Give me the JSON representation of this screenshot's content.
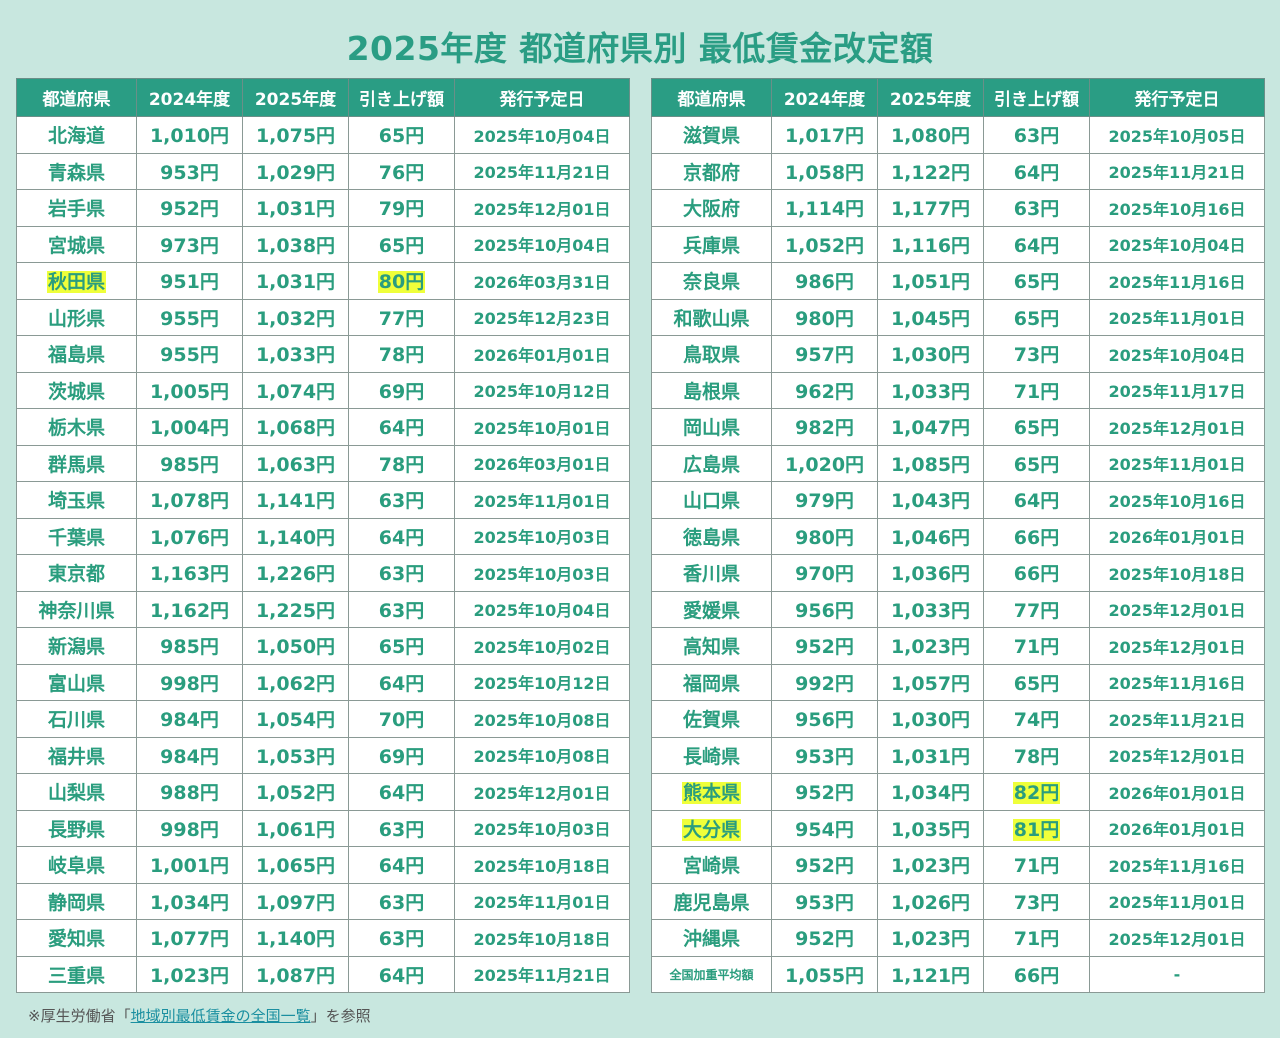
{
  "title": "2025年度 都道府県別 最低賃金改定額",
  "headers": [
    "都道府県",
    "2024年度",
    "2025年度",
    "引き上げ額",
    "発行予定日"
  ],
  "highlight_color": "#efff3a",
  "left": [
    [
      "北海道",
      "1,010円",
      "1,075円",
      "65円",
      "2025年10月04日"
    ],
    [
      "青森県",
      "953円",
      "1,029円",
      "76円",
      "2025年11月21日"
    ],
    [
      "岩手県",
      "952円",
      "1,031円",
      "79円",
      "2025年12月01日"
    ],
    [
      "宮城県",
      "973円",
      "1,038円",
      "65円",
      "2025年10月04日"
    ],
    [
      "秋田県",
      "951円",
      "1,031円",
      "80円",
      "2026年03月31日",
      true
    ],
    [
      "山形県",
      "955円",
      "1,032円",
      "77円",
      "2025年12月23日"
    ],
    [
      "福島県",
      "955円",
      "1,033円",
      "78円",
      "2026年01月01日"
    ],
    [
      "茨城県",
      "1,005円",
      "1,074円",
      "69円",
      "2025年10月12日"
    ],
    [
      "栃木県",
      "1,004円",
      "1,068円",
      "64円",
      "2025年10月01日"
    ],
    [
      "群馬県",
      "985円",
      "1,063円",
      "78円",
      "2026年03月01日"
    ],
    [
      "埼玉県",
      "1,078円",
      "1,141円",
      "63円",
      "2025年11月01日"
    ],
    [
      "千葉県",
      "1,076円",
      "1,140円",
      "64円",
      "2025年10月03日"
    ],
    [
      "東京都",
      "1,163円",
      "1,226円",
      "63円",
      "2025年10月03日"
    ],
    [
      "神奈川県",
      "1,162円",
      "1,225円",
      "63円",
      "2025年10月04日"
    ],
    [
      "新潟県",
      "985円",
      "1,050円",
      "65円",
      "2025年10月02日"
    ],
    [
      "富山県",
      "998円",
      "1,062円",
      "64円",
      "2025年10月12日"
    ],
    [
      "石川県",
      "984円",
      "1,054円",
      "70円",
      "2025年10月08日"
    ],
    [
      "福井県",
      "984円",
      "1,053円",
      "69円",
      "2025年10月08日"
    ],
    [
      "山梨県",
      "988円",
      "1,052円",
      "64円",
      "2025年12月01日"
    ],
    [
      "長野県",
      "998円",
      "1,061円",
      "63円",
      "2025年10月03日"
    ],
    [
      "岐阜県",
      "1,001円",
      "1,065円",
      "64円",
      "2025年10月18日"
    ],
    [
      "静岡県",
      "1,034円",
      "1,097円",
      "63円",
      "2025年11月01日"
    ],
    [
      "愛知県",
      "1,077円",
      "1,140円",
      "63円",
      "2025年10月18日"
    ],
    [
      "三重県",
      "1,023円",
      "1,087円",
      "64円",
      "2025年11月21日"
    ]
  ],
  "right": [
    [
      "滋賀県",
      "1,017円",
      "1,080円",
      "63円",
      "2025年10月05日"
    ],
    [
      "京都府",
      "1,058円",
      "1,122円",
      "64円",
      "2025年11月21日"
    ],
    [
      "大阪府",
      "1,114円",
      "1,177円",
      "63円",
      "2025年10月16日"
    ],
    [
      "兵庫県",
      "1,052円",
      "1,116円",
      "64円",
      "2025年10月04日"
    ],
    [
      "奈良県",
      "986円",
      "1,051円",
      "65円",
      "2025年11月16日"
    ],
    [
      "和歌山県",
      "980円",
      "1,045円",
      "65円",
      "2025年11月01日"
    ],
    [
      "鳥取県",
      "957円",
      "1,030円",
      "73円",
      "2025年10月04日"
    ],
    [
      "島根県",
      "962円",
      "1,033円",
      "71円",
      "2025年11月17日"
    ],
    [
      "岡山県",
      "982円",
      "1,047円",
      "65円",
      "2025年12月01日"
    ],
    [
      "広島県",
      "1,020円",
      "1,085円",
      "65円",
      "2025年11月01日"
    ],
    [
      "山口県",
      "979円",
      "1,043円",
      "64円",
      "2025年10月16日"
    ],
    [
      "徳島県",
      "980円",
      "1,046円",
      "66円",
      "2026年01月01日"
    ],
    [
      "香川県",
      "970円",
      "1,036円",
      "66円",
      "2025年10月18日"
    ],
    [
      "愛媛県",
      "956円",
      "1,033円",
      "77円",
      "2025年12月01日"
    ],
    [
      "高知県",
      "952円",
      "1,023円",
      "71円",
      "2025年12月01日"
    ],
    [
      "福岡県",
      "992円",
      "1,057円",
      "65円",
      "2025年11月16日"
    ],
    [
      "佐賀県",
      "956円",
      "1,030円",
      "74円",
      "2025年11月21日"
    ],
    [
      "長崎県",
      "953円",
      "1,031円",
      "78円",
      "2025年12月01日"
    ],
    [
      "熊本県",
      "952円",
      "1,034円",
      "82円",
      "2026年01月01日",
      true
    ],
    [
      "大分県",
      "954円",
      "1,035円",
      "81円",
      "2026年01月01日",
      true
    ],
    [
      "宮崎県",
      "952円",
      "1,023円",
      "71円",
      "2025年11月16日"
    ],
    [
      "鹿児島県",
      "953円",
      "1,026円",
      "73円",
      "2025年11月01日"
    ],
    [
      "沖縄県",
      "952円",
      "1,023円",
      "71円",
      "2025年12月01日"
    ],
    [
      "全国加重平均額",
      "1,055円",
      "1,121円",
      "66円",
      "-"
    ]
  ],
  "note": {
    "prefix": "※厚生労働省「",
    "link": "地域別最低賃金の全国一覧",
    "suffix": "」を参照"
  }
}
